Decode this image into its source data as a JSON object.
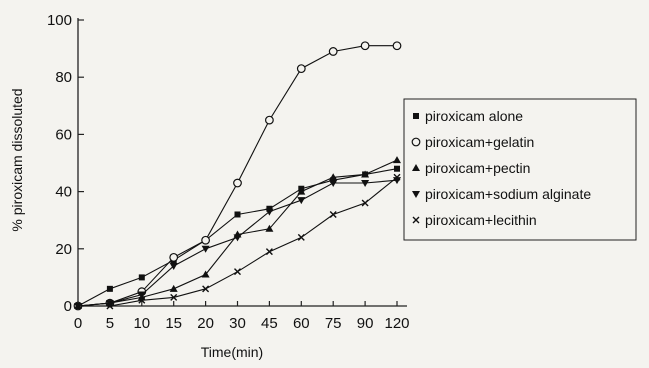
{
  "chart_data": {
    "type": "line",
    "title": "",
    "xlabel": "Time(min)",
    "ylabel": "% piroxicam dissoluted",
    "categories": [
      "0",
      "5",
      "10",
      "15",
      "20",
      "30",
      "45",
      "60",
      "75",
      "90",
      "120"
    ],
    "ylim": [
      0,
      100
    ],
    "yticks": [
      0,
      20,
      40,
      60,
      80,
      100
    ],
    "grid": false,
    "legend_position": "center-right",
    "series": [
      {
        "name": "piroxicam alone",
        "marker": "square",
        "color": "#111111",
        "values": [
          0,
          6,
          10,
          16,
          23,
          32,
          34,
          41,
          44,
          46,
          48
        ]
      },
      {
        "name": "piroxicam+gelatin",
        "marker": "circle-open",
        "color": "#111111",
        "values": [
          0,
          1,
          5,
          17,
          23,
          43,
          65,
          83,
          89,
          91,
          91
        ]
      },
      {
        "name": "piroxicam+pectin",
        "marker": "triangle-up",
        "color": "#111111",
        "values": [
          0,
          1,
          3,
          6,
          11,
          25,
          27,
          40,
          45,
          46,
          51
        ]
      },
      {
        "name": "piroxicam+sodium alginate",
        "marker": "triangle-down",
        "color": "#111111",
        "values": [
          0,
          1,
          4,
          14,
          20,
          24,
          33,
          37,
          43,
          43,
          44
        ]
      },
      {
        "name": "piroxicam+lecithin",
        "marker": "cross",
        "color": "#111111",
        "values": [
          0,
          0,
          2,
          3,
          6,
          12,
          19,
          24,
          32,
          36,
          45
        ]
      }
    ]
  }
}
